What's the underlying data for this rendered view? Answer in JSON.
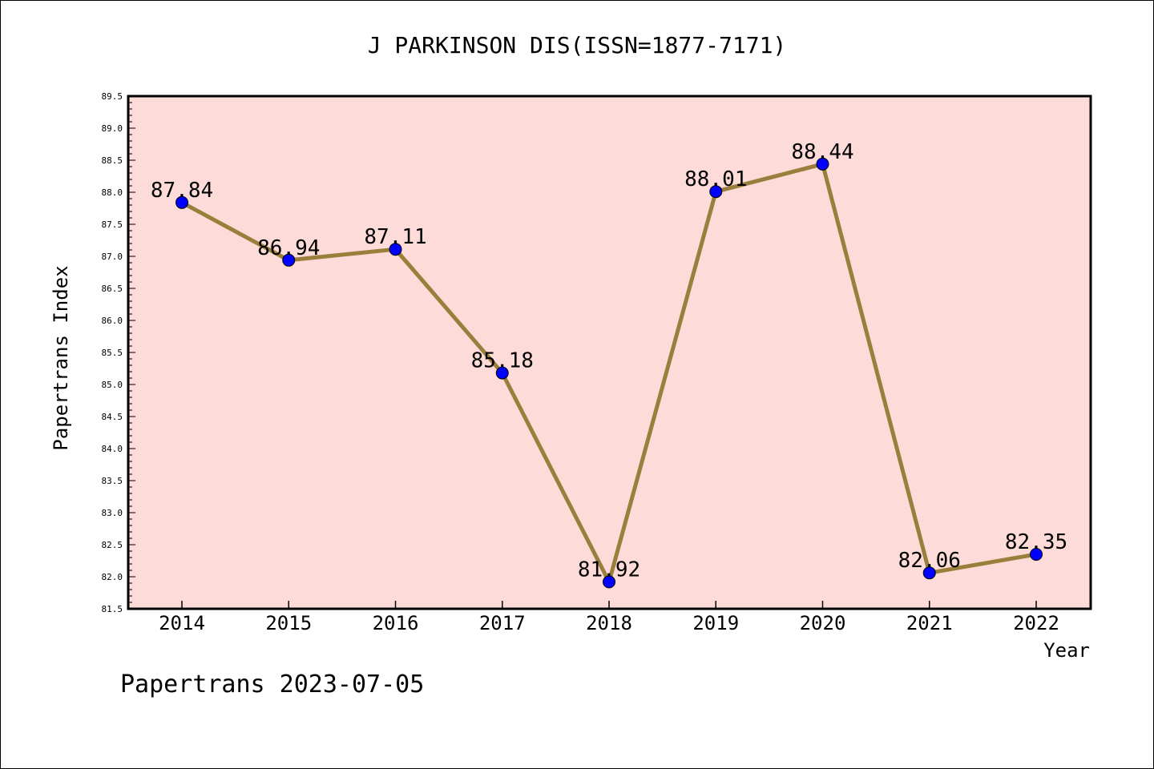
{
  "chart_data": {
    "type": "line",
    "title": "J PARKINSON DIS(ISSN=1877-7171)",
    "xlabel": "Year",
    "ylabel": "Papertrans Index",
    "categories": [
      "2014",
      "2015",
      "2016",
      "2017",
      "2018",
      "2019",
      "2020",
      "2021",
      "2022"
    ],
    "series": [
      {
        "values": [
          87.84,
          86.94,
          87.11,
          85.18,
          81.92,
          88.01,
          88.44,
          82.06,
          82.35
        ],
        "labels": [
          "87.84",
          "86.94",
          "87.11",
          "85.18",
          "81.92",
          "88.01",
          "88.44",
          "82.06",
          "82.35"
        ]
      }
    ],
    "ylim": [
      81.5,
      89.5
    ],
    "yticks": [
      "81.5",
      "82.0",
      "82.5",
      "83.0",
      "83.5",
      "84.0",
      "84.5",
      "85.0",
      "85.5",
      "86.0",
      "86.5",
      "87.0",
      "87.5",
      "88.0",
      "88.5",
      "89.0",
      "89.5"
    ],
    "grid": false,
    "footer": "Papertrans 2023-07-05",
    "colors": {
      "plot_background": "#fddbd8",
      "line": "#9a7f3c",
      "marker": "#0000ff"
    }
  }
}
